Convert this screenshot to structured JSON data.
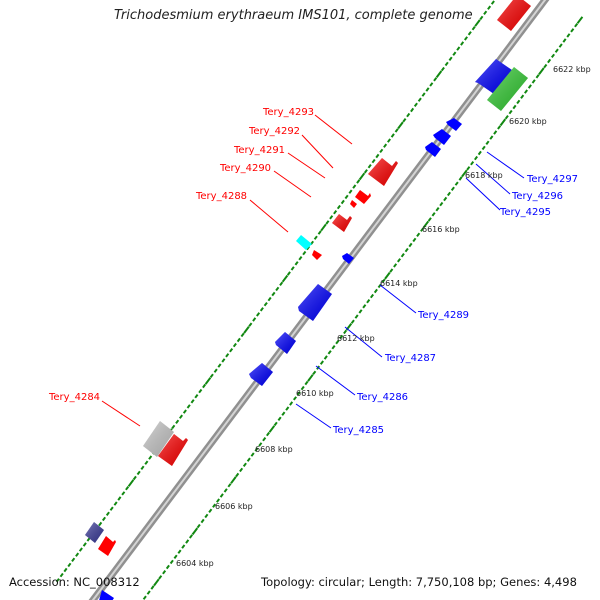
{
  "title": "Trichodesmium erythraeum IMS101, complete genome",
  "accession": "Accession: NC_008312",
  "topology": "Topology: circular; Length: 7,750,108 bp; Genes: 4,498",
  "colors": {
    "backbone": "#909090",
    "forward_gene": "#ff0000",
    "reverse_gene": "#0000ff",
    "rna_gene": "#00ffff",
    "other_gene_light": "#c8c8c8",
    "other_gene_green": "#33cc33",
    "other_gene_purple": "#3b3b9a",
    "tick": "#118811"
  },
  "scale_labels": [
    "6622 kbp",
    "6620 kbp",
    "6618 kbp",
    "6616 kbp",
    "6614 kbp",
    "6612 kbp",
    "6610 kbp",
    "6608 kbp",
    "6606 kbp",
    "6604 kbp"
  ],
  "gene_labels_left": [
    "Tery_4293",
    "Tery_4292",
    "Tery_4291",
    "Tery_4290",
    "Tery_4288",
    "Tery_4284"
  ],
  "gene_labels_right": [
    "Tery_4297",
    "Tery_4296",
    "Tery_4295",
    "Tery_4289",
    "Tery_4287",
    "Tery_4286",
    "Tery_4285"
  ]
}
